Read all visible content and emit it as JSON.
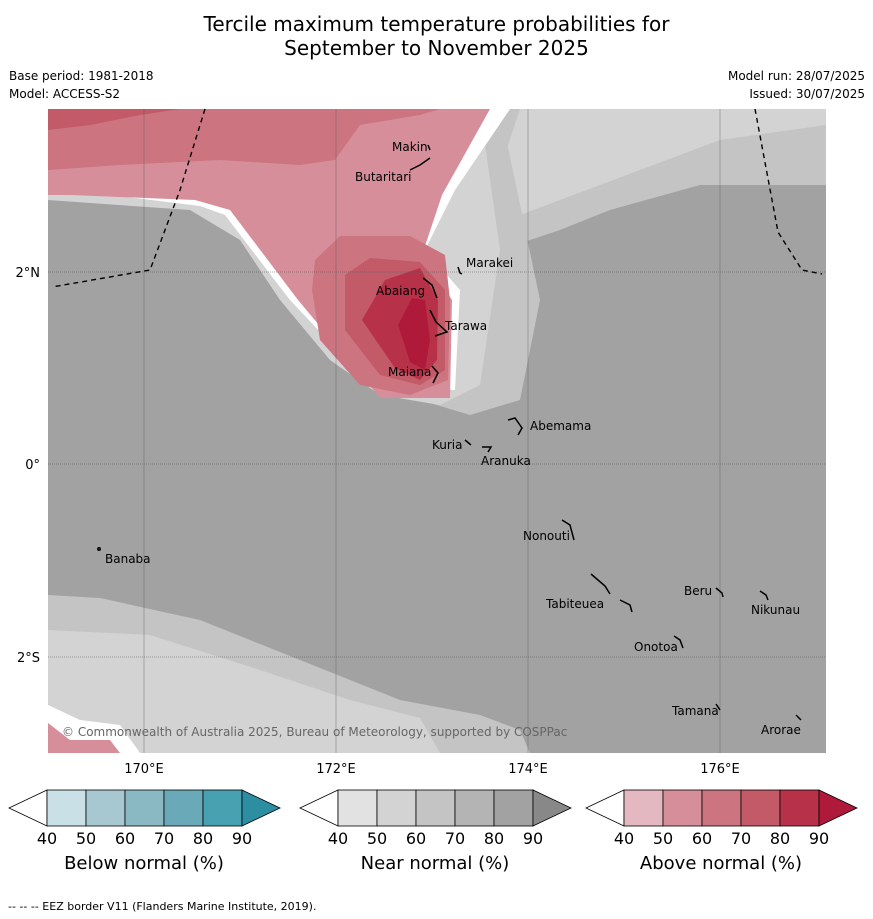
{
  "title": {
    "line1": "Tercile maximum temperature probabilities for",
    "line2": "September to November 2025"
  },
  "meta": {
    "base_period": "Base period: 1981-2018",
    "model": "Model: ACCESS-S2",
    "model_run": "Model run: 28/07/2025",
    "issued": "Issued: 30/07/2025"
  },
  "map": {
    "lat_labels": [
      "2°N",
      "0°",
      "2°S"
    ],
    "lon_labels": [
      "170°E",
      "172°E",
      "174°E",
      "176°E"
    ],
    "places": [
      "Makin",
      "Butaritari",
      "Marakei",
      "Abaiang",
      "Tarawa",
      "Maiana",
      "Abemama",
      "Kuria",
      "Aranuka",
      "Banaba",
      "Nonouti",
      "Beru",
      "Tabiteuea",
      "Nikunau",
      "Onotoa",
      "Tamana",
      "Arorae"
    ],
    "copyright": "© Commonwealth of Australia 2025, Bureau of Meteorology, supported by COSPPac"
  },
  "colorbars": [
    {
      "caption": "Below normal (%)",
      "ticks": [
        "40",
        "50",
        "60",
        "70",
        "80",
        "90"
      ],
      "colors": [
        "#ffffff",
        "#c9e0e7",
        "#a7c8d0",
        "#8ab8c3",
        "#6aaab8",
        "#47a1b0",
        "#2d8ea2"
      ]
    },
    {
      "caption": "Near normal (%)",
      "ticks": [
        "40",
        "50",
        "60",
        "70",
        "80",
        "90"
      ],
      "colors": [
        "#ffffff",
        "#e2e2e2",
        "#d3d3d3",
        "#c4c4c4",
        "#b4b4b4",
        "#a2a2a2",
        "#888888"
      ]
    },
    {
      "caption": "Above normal (%)",
      "ticks": [
        "40",
        "50",
        "60",
        "70",
        "80",
        "90"
      ],
      "colors": [
        "#ffffff",
        "#e3b8c0",
        "#d68f9a",
        "#cc7480",
        "#c35a68",
        "#b73249",
        "#b01a3a"
      ]
    }
  ],
  "footer": "--  --  -- EEZ border V11 (Flanders Marine Institute, 2019)."
}
